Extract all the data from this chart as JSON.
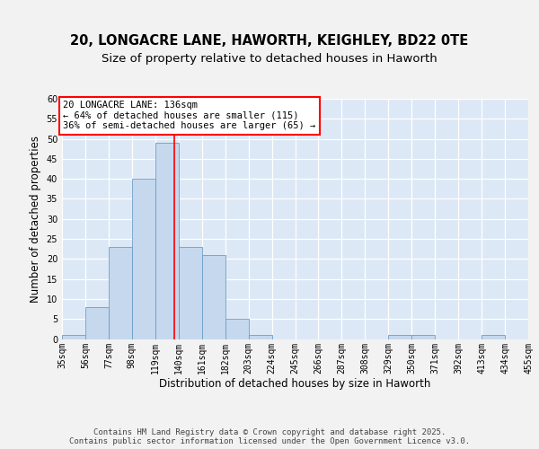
{
  "title_line1": "20, LONGACRE LANE, HAWORTH, KEIGHLEY, BD22 0TE",
  "title_line2": "Size of property relative to detached houses in Haworth",
  "xlabel": "Distribution of detached houses by size in Haworth",
  "ylabel": "Number of detached properties",
  "bar_color": "#c5d8ee",
  "bar_edge_color": "#6b9ec8",
  "background_color": "#dce8f5",
  "grid_color": "#ffffff",
  "annotation_text": "20 LONGACRE LANE: 136sqm\n← 64% of detached houses are smaller (115)\n36% of semi-detached houses are larger (65) →",
  "property_sqm": 136,
  "bin_edges": [
    35,
    56,
    77,
    98,
    119,
    140,
    161,
    182,
    203,
    224,
    245,
    266,
    287,
    308,
    329,
    350,
    371,
    392,
    413,
    434,
    455
  ],
  "bar_heights": [
    1,
    8,
    23,
    40,
    49,
    23,
    21,
    5,
    1,
    0,
    0,
    0,
    0,
    0,
    1,
    1,
    0,
    0,
    1,
    0
  ],
  "ylim": [
    0,
    60
  ],
  "yticks": [
    0,
    5,
    10,
    15,
    20,
    25,
    30,
    35,
    40,
    45,
    50,
    55,
    60
  ],
  "tick_labels": [
    "35sqm",
    "56sqm",
    "77sqm",
    "98sqm",
    "119sqm",
    "140sqm",
    "161sqm",
    "182sqm",
    "203sqm",
    "224sqm",
    "245sqm",
    "266sqm",
    "287sqm",
    "308sqm",
    "329sqm",
    "350sqm",
    "371sqm",
    "392sqm",
    "413sqm",
    "434sqm",
    "455sqm"
  ],
  "footer_text": "Contains HM Land Registry data © Crown copyright and database right 2025.\nContains public sector information licensed under the Open Government Licence v3.0.",
  "title_fontsize": 10.5,
  "subtitle_fontsize": 9.5,
  "axis_label_fontsize": 8.5,
  "tick_fontsize": 7,
  "annotation_fontsize": 7.5,
  "footer_fontsize": 6.5,
  "fig_bg": "#f2f2f2"
}
